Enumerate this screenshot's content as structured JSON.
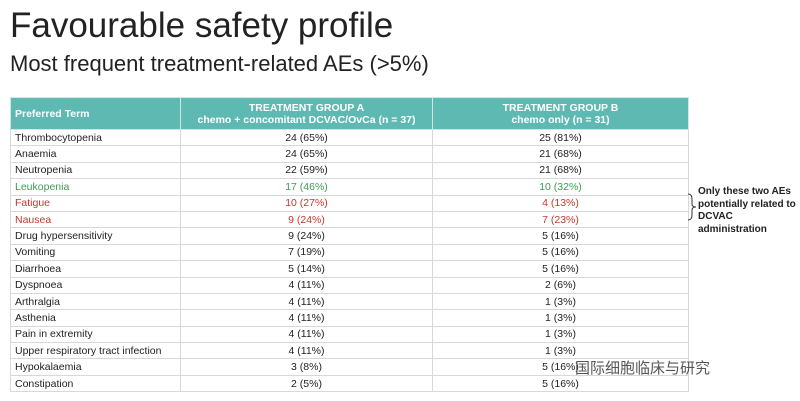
{
  "header": {
    "title": "Favourable safety profile",
    "subtitle": "Most frequent treatment-related AEs (>5%)"
  },
  "table": {
    "columns": [
      "Preferred Term",
      {
        "name": "TREATMENT GROUP A",
        "detail": "chemo + concomitant DCVAC/OvCa  (n = 37)"
      },
      {
        "name": "TREATMENT GROUP B",
        "detail": "chemo only  (n = 31)"
      }
    ],
    "rows": [
      [
        "Thrombocytopenia",
        "24 (65%)",
        "25 (81%)"
      ],
      [
        "Anaemia",
        "24 (65%)",
        "21 (68%)"
      ],
      [
        "Neutropenia",
        "22 (59%)",
        "21 (68%)"
      ],
      [
        "Leukopenia",
        "17 (46%)",
        "10 (32%)"
      ],
      [
        "Fatigue",
        "10 (27%)",
        "4 (13%)"
      ],
      [
        "Nausea",
        "9 (24%)",
        "7 (23%)"
      ],
      [
        "Drug hypersensitivity",
        "9 (24%)",
        "5 (16%)"
      ],
      [
        "Vomiting",
        "7 (19%)",
        "5 (16%)"
      ],
      [
        "Diarrhoea",
        "5 (14%)",
        "5 (16%)"
      ],
      [
        "Dyspnoea",
        "4 (11%)",
        "2 (6%)"
      ],
      [
        "Arthralgia",
        "4 (11%)",
        "1 (3%)"
      ],
      [
        "Asthenia",
        "4 (11%)",
        "1 (3%)"
      ],
      [
        "Pain in extremity",
        "4 (11%)",
        "1 (3%)"
      ],
      [
        "Upper respiratory tract infection",
        "4 (11%)",
        "1 (3%)"
      ],
      [
        "Hypokalaemia",
        "3 (8%)",
        "5 (16%)"
      ],
      [
        "Constipation",
        "2 (5%)",
        "5 (16%)"
      ]
    ],
    "row_colors": [
      null,
      null,
      null,
      "#3f9b52",
      "#c0392b",
      "#c0392b",
      null,
      null,
      null,
      null,
      null,
      null,
      null,
      null,
      null,
      null
    ]
  },
  "annotation": "Only these two AEs potentially related to DCVAC administration",
  "watermark": "国际细胞临床与研究"
}
